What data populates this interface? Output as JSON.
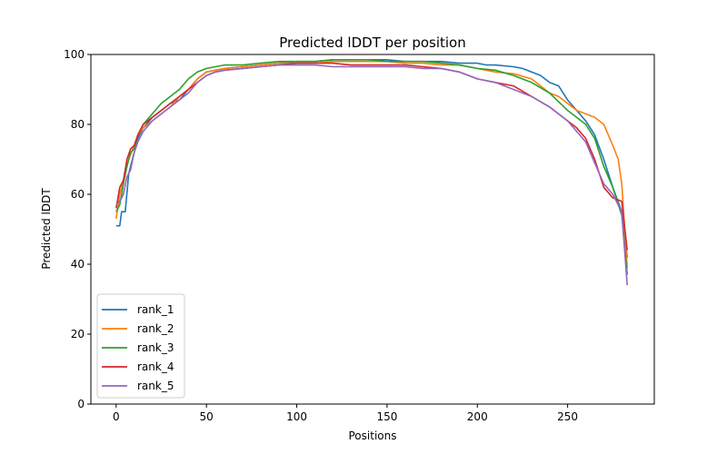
{
  "chart_data": {
    "type": "line",
    "title": "Predicted lDDT per position",
    "xlabel": "Positions",
    "ylabel": "Predicted lDDT",
    "xlim": [
      -14,
      298
    ],
    "ylim": [
      0,
      100
    ],
    "xticks": [
      0,
      50,
      100,
      150,
      200,
      250
    ],
    "yticks": [
      0,
      20,
      40,
      60,
      80,
      100
    ],
    "grid": false,
    "legend_position": "bottom-left",
    "series": [
      {
        "name": "rank_1",
        "color": "#1f77b4",
        "x": [
          0,
          2,
          3,
          5,
          7,
          10,
          12,
          15,
          20,
          25,
          30,
          35,
          40,
          45,
          50,
          55,
          60,
          70,
          80,
          90,
          100,
          110,
          120,
          130,
          140,
          150,
          160,
          170,
          180,
          190,
          200,
          205,
          210,
          220,
          225,
          230,
          235,
          240,
          245,
          250,
          255,
          260,
          265,
          270,
          275,
          280,
          283
        ],
        "y": [
          51,
          51,
          55,
          55,
          66,
          72,
          76,
          79,
          82,
          84,
          86,
          87,
          90,
          93,
          95,
          95.5,
          96,
          96.5,
          97,
          97.5,
          98,
          98,
          98.5,
          98.5,
          98.5,
          98.5,
          98,
          98,
          98,
          97.5,
          97.5,
          97,
          97,
          96.5,
          96,
          95,
          94,
          92,
          91,
          87,
          84,
          81,
          77,
          70,
          62,
          55,
          42
        ]
      },
      {
        "name": "rank_2",
        "color": "#ff7f0e",
        "x": [
          0,
          2,
          4,
          7,
          10,
          12,
          15,
          20,
          25,
          30,
          35,
          40,
          45,
          50,
          55,
          60,
          70,
          80,
          90,
          100,
          110,
          120,
          130,
          140,
          150,
          160,
          170,
          180,
          190,
          195,
          200,
          210,
          220,
          230,
          235,
          240,
          245,
          250,
          255,
          260,
          265,
          270,
          275,
          278,
          280,
          283
        ],
        "y": [
          53,
          60,
          64,
          70,
          74,
          77,
          79,
          81,
          83,
          85,
          88,
          90,
          93,
          95,
          95.5,
          96,
          96.5,
          97,
          97.5,
          97.5,
          97.5,
          98,
          98,
          98,
          98,
          97.5,
          97.5,
          97,
          97,
          96.5,
          96,
          95,
          94.5,
          93,
          91,
          89,
          88,
          86,
          84,
          83,
          82,
          80,
          74,
          70,
          63,
          39
        ]
      },
      {
        "name": "rank_3",
        "color": "#2ca02c",
        "x": [
          0,
          2,
          4,
          6,
          8,
          10,
          12,
          15,
          20,
          25,
          30,
          35,
          40,
          45,
          50,
          55,
          60,
          70,
          80,
          90,
          100,
          110,
          120,
          130,
          140,
          150,
          160,
          170,
          180,
          190,
          200,
          210,
          220,
          230,
          240,
          250,
          255,
          260,
          265,
          270,
          275,
          280,
          283
        ],
        "y": [
          55,
          57,
          63,
          68,
          72,
          73,
          77,
          80,
          83,
          86,
          88,
          90,
          93,
          95,
          96,
          96.5,
          97,
          97,
          97.5,
          98,
          98,
          98,
          98.5,
          98.5,
          98.5,
          98,
          98,
          98,
          97.5,
          97,
          96,
          95.5,
          94,
          92,
          89,
          84,
          82,
          80,
          76,
          68,
          62,
          54,
          37
        ]
      },
      {
        "name": "rank_4",
        "color": "#d62728",
        "x": [
          0,
          2,
          4,
          6,
          8,
          10,
          12,
          15,
          20,
          25,
          30,
          35,
          40,
          45,
          50,
          55,
          60,
          70,
          80,
          90,
          100,
          110,
          120,
          130,
          140,
          150,
          160,
          170,
          180,
          190,
          200,
          210,
          220,
          230,
          240,
          250,
          255,
          260,
          265,
          270,
          275,
          280,
          283
        ],
        "y": [
          56,
          62,
          64,
          70,
          73,
          74,
          77,
          80,
          82,
          84,
          86,
          88,
          90,
          92,
          94,
          95,
          95.5,
          96,
          96.5,
          97,
          97.5,
          97.5,
          97.5,
          97,
          97,
          97,
          97,
          96.5,
          96,
          95,
          93,
          92,
          91,
          88,
          85,
          81,
          79,
          76,
          70,
          62,
          59,
          58,
          44
        ]
      },
      {
        "name": "rank_5",
        "color": "#9467bd",
        "x": [
          0,
          2,
          4,
          6,
          8,
          10,
          12,
          15,
          20,
          25,
          30,
          35,
          40,
          45,
          50,
          55,
          60,
          70,
          80,
          90,
          100,
          110,
          120,
          130,
          140,
          150,
          160,
          170,
          180,
          190,
          200,
          210,
          220,
          230,
          240,
          250,
          255,
          260,
          265,
          270,
          275,
          280,
          283
        ],
        "y": [
          57,
          58,
          60,
          65,
          67,
          72,
          75,
          78,
          81,
          83,
          85,
          87,
          89,
          92,
          94,
          95,
          95.5,
          96,
          96.5,
          97,
          97,
          97,
          96.5,
          96.5,
          96.5,
          96.5,
          96.5,
          96,
          96,
          95,
          93,
          92,
          90,
          88,
          85,
          81,
          78,
          75,
          69,
          63,
          60,
          55,
          34
        ]
      }
    ]
  }
}
